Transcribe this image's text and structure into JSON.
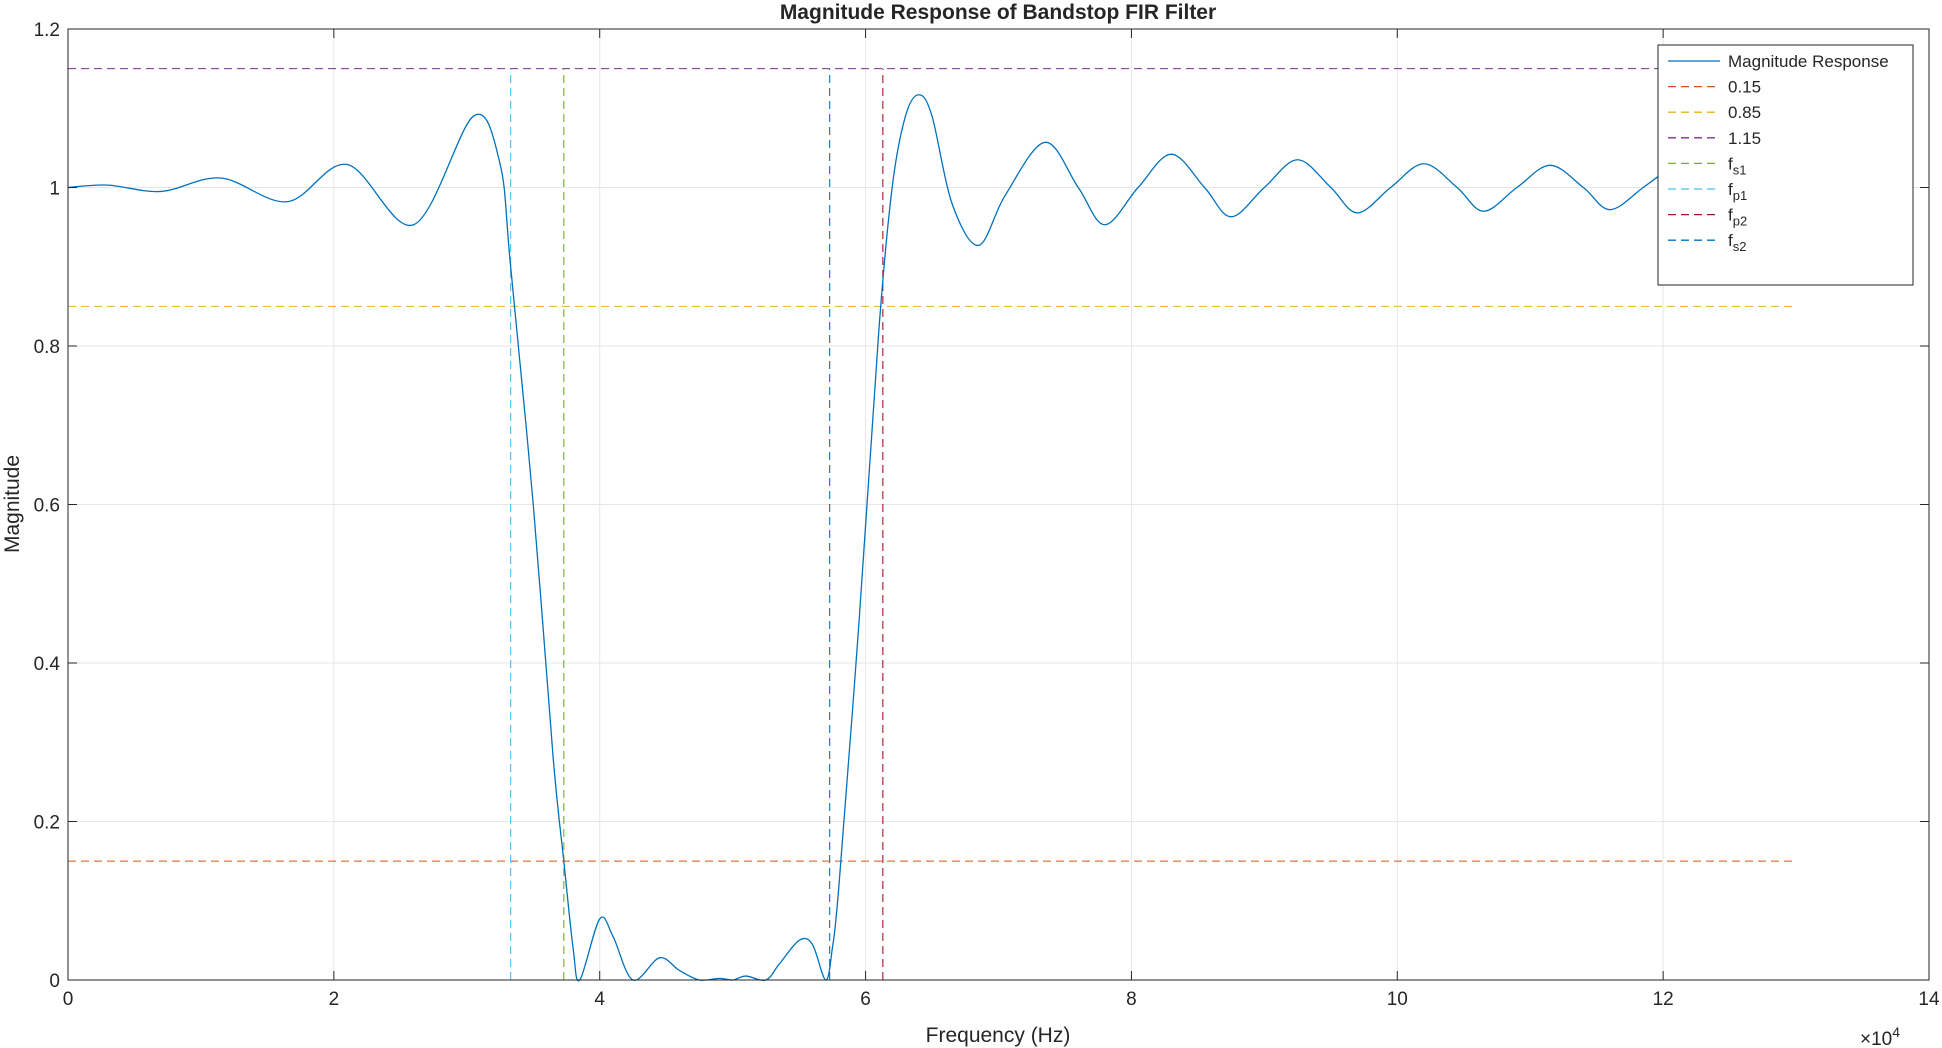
{
  "chart_data": {
    "type": "line",
    "title": "Magnitude Response of Bandstop FIR Filter",
    "xlabel": "Frequency (Hz)",
    "ylabel": "Magnitude",
    "x_exponent_label": "×10",
    "x_exponent_power": "4",
    "xlim": [
      0,
      140000
    ],
    "ylim": [
      0,
      1.2
    ],
    "x_tick_values": [
      0,
      20000,
      40000,
      60000,
      80000,
      100000,
      120000,
      140000
    ],
    "x_tick_labels": [
      "0",
      "2",
      "4",
      "6",
      "8",
      "10",
      "12",
      "14"
    ],
    "y_tick_values": [
      0,
      0.2,
      0.4,
      0.6,
      0.8,
      1.0,
      1.2
    ],
    "y_tick_labels": [
      "0",
      "0.2",
      "0.4",
      "0.6",
      "0.8",
      "1",
      "1.2"
    ],
    "grid": true,
    "legend_position": "top-right",
    "series": [
      {
        "name": "Magnitude Response",
        "color": "#0072BD",
        "style": "solid",
        "points": [
          [
            0,
            1.0
          ],
          [
            3000,
            1.003
          ],
          [
            7000,
            0.995
          ],
          [
            11500,
            1.012
          ],
          [
            16500,
            0.982
          ],
          [
            21000,
            1.029
          ],
          [
            26000,
            0.953
          ],
          [
            30500,
            1.09
          ],
          [
            32500,
            1.03
          ],
          [
            33300,
            0.9
          ],
          [
            35000,
            0.6
          ],
          [
            36500,
            0.28
          ],
          [
            37300,
            0.15
          ],
          [
            38000,
            0.04
          ],
          [
            38500,
            0.0
          ],
          [
            40000,
            0.077
          ],
          [
            41000,
            0.055
          ],
          [
            42500,
            0.0
          ],
          [
            44500,
            0.028
          ],
          [
            46000,
            0.012
          ],
          [
            47500,
            0.0
          ],
          [
            49000,
            0.002
          ],
          [
            50000,
            0.0
          ],
          [
            51000,
            0.005
          ],
          [
            52500,
            0.0
          ],
          [
            53500,
            0.02
          ],
          [
            55000,
            0.05
          ],
          [
            56000,
            0.045
          ],
          [
            57000,
            0.0
          ],
          [
            57500,
            0.04
          ],
          [
            58000,
            0.12
          ],
          [
            59500,
            0.45
          ],
          [
            61000,
            0.82
          ],
          [
            62000,
            1.0
          ],
          [
            63000,
            1.09
          ],
          [
            64000,
            1.117
          ],
          [
            65000,
            1.09
          ],
          [
            66500,
            0.98
          ],
          [
            68500,
            0.927
          ],
          [
            70500,
            0.99
          ],
          [
            73500,
            1.057
          ],
          [
            76000,
            1.0
          ],
          [
            78000,
            0.953
          ],
          [
            80500,
            1.0
          ],
          [
            83000,
            1.042
          ],
          [
            85500,
            1.0
          ],
          [
            87500,
            0.963
          ],
          [
            90000,
            1.0
          ],
          [
            92500,
            1.035
          ],
          [
            95000,
            1.0
          ],
          [
            97000,
            0.968
          ],
          [
            99500,
            1.0
          ],
          [
            102000,
            1.03
          ],
          [
            104500,
            1.0
          ],
          [
            106500,
            0.97
          ],
          [
            109000,
            1.0
          ],
          [
            111500,
            1.028
          ],
          [
            114000,
            1.0
          ],
          [
            116000,
            0.972
          ],
          [
            118500,
            1.0
          ],
          [
            120500,
            1.025
          ]
        ]
      },
      {
        "name": "0.15",
        "color": "#D95319",
        "style": "dashed",
        "points": [
          [
            0,
            0.15
          ],
          [
            130000,
            0.15
          ]
        ]
      },
      {
        "name": "0.85",
        "color": "#EDB120",
        "style": "dashed",
        "points": [
          [
            0,
            0.85
          ],
          [
            130000,
            0.85
          ]
        ]
      },
      {
        "name": "1.15",
        "color": "#7E2F8E",
        "style": "dashed",
        "points": [
          [
            0,
            1.15
          ],
          [
            130000,
            1.15
          ]
        ]
      },
      {
        "name": "f",
        "name_sub": "s1",
        "color": "#77AC30",
        "style": "dashed",
        "points": [
          [
            37300,
            0
          ],
          [
            37300,
            1.15
          ]
        ]
      },
      {
        "name": "f",
        "name_sub": "p1",
        "color": "#4DBEEE",
        "style": "dashed",
        "points": [
          [
            33300,
            0
          ],
          [
            33300,
            1.15
          ]
        ]
      },
      {
        "name": "f",
        "name_sub": "p2",
        "color": "#A2142F",
        "style": "dashed",
        "points": [
          [
            61300,
            0
          ],
          [
            61300,
            1.15
          ]
        ]
      },
      {
        "name": "f",
        "name_sub": "s2",
        "color": "#0072BD",
        "style": "dashed",
        "points": [
          [
            57300,
            0
          ],
          [
            57300,
            1.15
          ]
        ]
      }
    ]
  }
}
